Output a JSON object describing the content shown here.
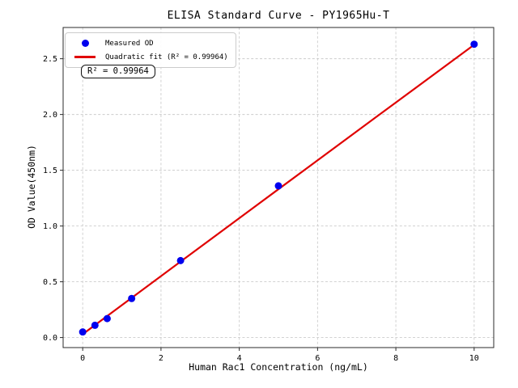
{
  "chart_data": {
    "type": "scatter",
    "title": "ELISA Standard Curve - PY1965Hu-T",
    "xlabel": "Human Rac1 Concentration (ng/mL)",
    "ylabel": "OD Value(450nm)",
    "xlim": [
      -0.5,
      10.5
    ],
    "ylim": [
      -0.09,
      2.78
    ],
    "xticks": [
      0,
      2,
      4,
      6,
      8,
      10
    ],
    "yticks": [
      0.0,
      0.5,
      1.0,
      1.5,
      2.0,
      2.5
    ],
    "xtick_labels": [
      "0",
      "2",
      "4",
      "6",
      "8",
      "10"
    ],
    "ytick_labels": [
      "0.0",
      "0.5",
      "1.0",
      "1.5",
      "2.0",
      "2.5"
    ],
    "grid": true,
    "series": [
      {
        "name": "Measured OD",
        "type": "scatter",
        "color": "#0000ee",
        "x": [
          0,
          0.313,
          0.625,
          1.25,
          2.5,
          5,
          10
        ],
        "y": [
          0.05,
          0.11,
          0.17,
          0.35,
          0.69,
          1.36,
          2.63
        ]
      },
      {
        "name": "Quadratic fit (R² = 0.99964)",
        "type": "line",
        "color": "#e00000",
        "x": [
          0,
          2.5,
          5,
          7.5,
          10
        ],
        "y": [
          0.03,
          0.681,
          1.33,
          1.978,
          2.625
        ]
      }
    ],
    "legend": {
      "position": "upper left",
      "entries": [
        {
          "label": "Measured OD",
          "marker": "dot",
          "color": "#0000ee"
        },
        {
          "label": "Quadratic fit (R² = 0.99964)",
          "marker": "line",
          "color": "#e00000"
        }
      ]
    },
    "annotation": {
      "text": "R² = 0.99964"
    },
    "r_squared": 0.99964,
    "style": {
      "grid_color": "#cccccc",
      "spine_color": "#2b2b2b",
      "background": "#ffffff"
    }
  }
}
